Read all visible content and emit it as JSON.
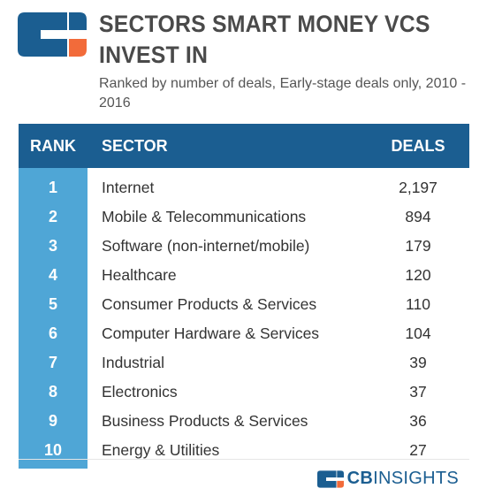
{
  "header": {
    "title": "SECTORS SMART MONEY VCS INVEST IN",
    "subtitle": "Ranked by number of deals, Early-stage deals only, 2010 - 2016"
  },
  "table": {
    "columns": {
      "rank": "RANK",
      "sector": "SECTOR",
      "deals": "DEALS"
    },
    "rows": [
      {
        "rank": "1",
        "sector": "Internet",
        "deals": "2,197"
      },
      {
        "rank": "2",
        "sector": "Mobile & Telecommunications",
        "deals": "894"
      },
      {
        "rank": "3",
        "sector": "Software (non-internet/mobile)",
        "deals": "179"
      },
      {
        "rank": "4",
        "sector": "Healthcare",
        "deals": "120"
      },
      {
        "rank": "5",
        "sector": "Consumer Products & Services",
        "deals": "110"
      },
      {
        "rank": "6",
        "sector": "Computer Hardware & Services",
        "deals": "104"
      },
      {
        "rank": "7",
        "sector": "Industrial",
        "deals": "39"
      },
      {
        "rank": "8",
        "sector": "Electronics",
        "deals": "37"
      },
      {
        "rank": "9",
        "sector": "Business Products & Services",
        "deals": "36"
      },
      {
        "rank": "10",
        "sector": "Energy & Utilities",
        "deals": "27"
      }
    ]
  },
  "footer": {
    "brand_bold": "CB",
    "brand_thin": "INSIGHTS"
  },
  "colors": {
    "header_blue": "#1b5e91",
    "rank_column_blue": "#4fa6d6",
    "logo_orange": "#f26b3a",
    "title_gray": "#4a4a4a"
  }
}
